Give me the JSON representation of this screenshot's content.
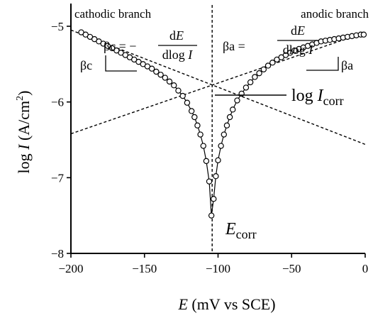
{
  "chart_data": {
    "type": "scatter",
    "title": "",
    "xlabel": {
      "symbol": "E",
      "rest": " (mV vs SCE)"
    },
    "ylabel": {
      "prefix": "log ",
      "symbol": "I",
      "rest": " (A/cm",
      "sup": "2",
      "end": ")"
    },
    "xlim": [
      -200,
      0
    ],
    "ylim": [
      -8,
      -4.7
    ],
    "x_ticks": [
      -200,
      -150,
      -100,
      -50,
      0
    ],
    "x_tick_labels": [
      "−200",
      "−150",
      "−100",
      "−50",
      "0"
    ],
    "y_ticks": [
      -8,
      -7,
      -6,
      -5
    ],
    "y_tick_labels": [
      "−8",
      "−7",
      "−6",
      "−5"
    ],
    "grid": false,
    "series": [
      {
        "marker": "open-circle",
        "x": [
          -193,
          -190,
          -187,
          -184,
          -181,
          -178,
          -175,
          -172,
          -169,
          -166,
          -163,
          -160,
          -157,
          -154,
          -151,
          -148,
          -145,
          -142,
          -139,
          -136,
          -133,
          -130,
          -127,
          -124,
          -121,
          -118,
          -116,
          -114,
          -112,
          -110,
          -108,
          -106,
          -104.5,
          -103,
          -101.5,
          -100,
          -98,
          -96,
          -94,
          -92,
          -90,
          -87,
          -84,
          -81,
          -78,
          -75,
          -72,
          -69,
          -66,
          -63,
          -60,
          -57,
          -54,
          -51,
          -48,
          -45,
          -42,
          -39,
          -36,
          -33,
          -30,
          -27,
          -24,
          -21,
          -18,
          -15,
          -12,
          -9,
          -6,
          -3,
          -1
        ],
        "y": [
          -5.08,
          -5.11,
          -5.14,
          -5.17,
          -5.2,
          -5.23,
          -5.26,
          -5.29,
          -5.32,
          -5.35,
          -5.38,
          -5.41,
          -5.44,
          -5.47,
          -5.5,
          -5.53,
          -5.56,
          -5.6,
          -5.64,
          -5.68,
          -5.73,
          -5.78,
          -5.85,
          -5.92,
          -6.01,
          -6.12,
          -6.2,
          -6.31,
          -6.43,
          -6.58,
          -6.78,
          -7.05,
          -7.5,
          -7.28,
          -6.98,
          -6.77,
          -6.58,
          -6.43,
          -6.31,
          -6.2,
          -6.1,
          -5.98,
          -5.89,
          -5.81,
          -5.74,
          -5.67,
          -5.62,
          -5.57,
          -5.52,
          -5.48,
          -5.44,
          -5.41,
          -5.38,
          -5.35,
          -5.32,
          -5.3,
          -5.28,
          -5.26,
          -5.24,
          -5.22,
          -5.2,
          -5.19,
          -5.18,
          -5.17,
          -5.16,
          -5.15,
          -5.14,
          -5.13,
          -5.12,
          -5.11,
          -5.11
        ]
      }
    ],
    "tafel_lines": [
      {
        "name": "cathodic-tafel-line",
        "x": [
          -200,
          0
        ],
        "y": [
          -5.05,
          -6.56
        ]
      },
      {
        "name": "anodic-tafel-line",
        "x": [
          -200,
          0
        ],
        "y": [
          -6.42,
          -5.08
        ]
      }
    ],
    "vertical_line_x": -104,
    "labels": {
      "cathodic_branch": "cathodic branch",
      "anodic_branch": "anodic branch",
      "beta_c_formula": {
        "lhs": "βc = −",
        "num_d": "d",
        "num_sym": "E",
        "den_text": "dlog ",
        "den_sym": "I"
      },
      "beta_a_formula": {
        "lhs": "βa =",
        "num_d": "d",
        "num_sym": "E",
        "den_text": "dlog ",
        "den_sym": "I"
      },
      "beta_c": "βc",
      "beta_a": "βa",
      "log_icorr": {
        "prefix": "log ",
        "sym": "I",
        "sub": "corr"
      },
      "ecorr": {
        "sym": "E",
        "sub": "corr"
      }
    }
  }
}
